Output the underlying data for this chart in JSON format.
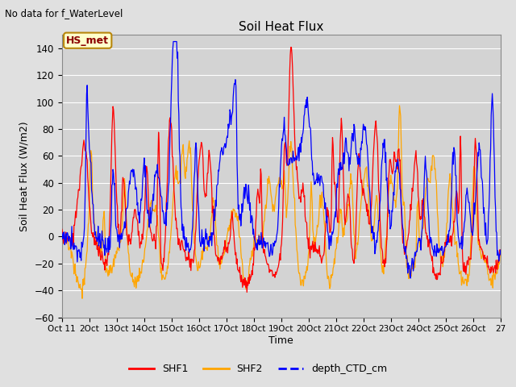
{
  "title": "Soil Heat Flux",
  "subtitle": "No data for f_WaterLevel",
  "ylabel": "Soil Heat Flux (W/m2)",
  "xlabel": "Time",
  "hs_met_label": "HS_met",
  "ylim": [
    -60,
    150
  ],
  "yticks": [
    -60,
    -40,
    -20,
    0,
    20,
    40,
    60,
    80,
    100,
    120,
    140
  ],
  "xtick_labels": [
    "Oct 11",
    "2Oct",
    "13Oct",
    "14Oct",
    "15Oct",
    "16Oct",
    "17Oct",
    "18Oct",
    "19Oct",
    "20Oct",
    "21Oct",
    "22Oct",
    "23Oct",
    "24Oct",
    "25Oct",
    "26Oct",
    "27"
  ],
  "legend_labels": [
    "SHF1",
    "SHF2",
    "depth_CTD_cm"
  ],
  "legend_colors": [
    "red",
    "orange",
    "blue"
  ],
  "shf1_color": "red",
  "shf2_color": "orange",
  "depth_color": "blue",
  "bg_color": "#e0e0e0",
  "plot_bg_color": "#d3d3d3",
  "n_points": 800,
  "seed": 42
}
